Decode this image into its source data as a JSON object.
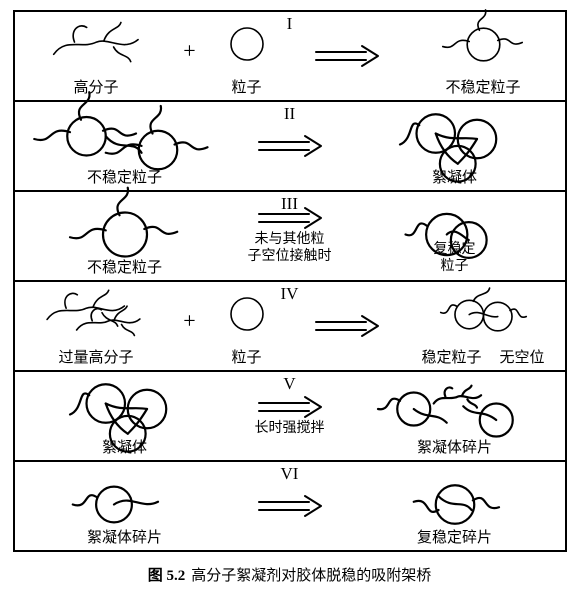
{
  "caption_number": "图 5.2",
  "caption_text": "高分子絮凝剂对胶体脱稳的吸附架桥",
  "arrow_stroke": "#000000",
  "line_stroke": "#000000",
  "line_width": 1.6,
  "rows": [
    {
      "roman": "I",
      "left": {
        "label": "高分子",
        "kind": "polymer"
      },
      "plus": "+",
      "mid": {
        "label": "粒子",
        "kind": "particle"
      },
      "arrow": {
        "sub": ""
      },
      "right": {
        "label": "不稳定粒子",
        "kind": "destab"
      }
    },
    {
      "roman": "II",
      "left": {
        "label": "不稳定粒子",
        "kind": "destab-multi"
      },
      "arrow": {
        "sub": ""
      },
      "right": {
        "label": "絮凝体",
        "kind": "floc"
      }
    },
    {
      "roman": "III",
      "left": {
        "label": "不稳定粒子",
        "kind": "destab"
      },
      "arrow": {
        "sub": "未与其他粒\n子空位接触时"
      },
      "right": {
        "label": "复稳定\n粒子",
        "kind": "restab"
      }
    },
    {
      "roman": "IV",
      "left": {
        "label": "过量高分子",
        "kind": "polymer-dense"
      },
      "plus": "+",
      "mid": {
        "label": "粒子",
        "kind": "particle"
      },
      "arrow": {
        "sub": ""
      },
      "right": {
        "label": "稳定粒子",
        "kind": "stable-pair",
        "label2": "无空位"
      }
    },
    {
      "roman": "V",
      "left": {
        "label": "絮凝体",
        "kind": "floc"
      },
      "arrow": {
        "sub": "长时强搅拌"
      },
      "right": {
        "label": "絮凝体碎片",
        "kind": "fragments"
      }
    },
    {
      "roman": "VI",
      "left": {
        "label": "絮凝体碎片",
        "kind": "fragment-single"
      },
      "arrow": {
        "sub": ""
      },
      "right": {
        "label": "复稳定碎片",
        "kind": "restab-frag"
      }
    }
  ]
}
